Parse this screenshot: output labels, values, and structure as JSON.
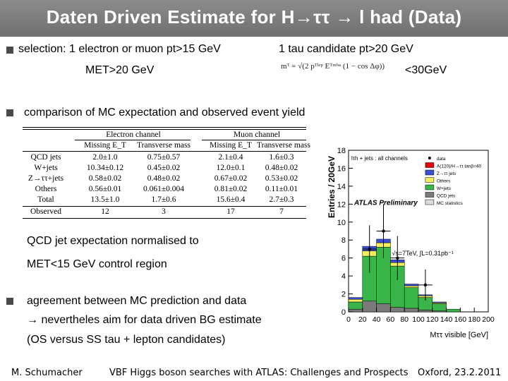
{
  "title": "Daten Driven Estimate for H→ττ → l had (Data)",
  "bullets": {
    "b1_left": "selection:   1 electron or muon pt>15 GeV",
    "b1_right": "1 tau candidate pt>20 GeV",
    "b1_met": "MET>20 GeV",
    "b1_mt_cut": "<30GeV",
    "b1_formula": "mᵀ = √(2 pᵀˡᵉᵖ Eᵀᵐⁱˢˢ (1 − cos Δφ))",
    "b2": "comparison of MC expectation and observed event yield",
    "b3_line1": "QCD jet expectation normalised  to",
    "b3_line2": "MET<15 GeV control region",
    "b4_line1": "agreement  between MC prediction and data",
    "b4_line2": "nevertheles aim for data driven BG estimate",
    "b4_line3": "(OS versus SS tau + lepton candidates)"
  },
  "table": {
    "group_headers": [
      "Electron channel",
      "Muon channel"
    ],
    "col_headers": [
      "Missing E_T",
      "Transverse mass",
      "Missing E_T",
      "Transverse mass"
    ],
    "rows": [
      {
        "label": "QCD jets",
        "values": [
          "2.0±1.0",
          "0.75±0.57",
          "2.1±0.4",
          "1.6±0.3"
        ]
      },
      {
        "label": "W+jets",
        "values": [
          "10.34±0.12",
          "0.45±0.02",
          "12.0±0.1",
          "0.48±0.02"
        ]
      },
      {
        "label": "Z→ττ+jets",
        "values": [
          "0.58±0.02",
          "0.48±0.02",
          "0.67±0.02",
          "0.53±0.02"
        ]
      },
      {
        "label": "Others",
        "values": [
          "0.56±0.01",
          "0.061±0.004",
          "0.81±0.02",
          "0.11±0.01"
        ]
      },
      {
        "label": "Total",
        "values": [
          "13.5±1.0",
          "1.7±0.6",
          "15.6±0.4",
          "2.7±0.3"
        ]
      },
      {
        "label": "Observed",
        "values": [
          "12",
          "3",
          "17",
          "7"
        ]
      }
    ]
  },
  "chart_data": {
    "type": "bar",
    "title": "lτh + jets : all channels",
    "xlabel": "Mττ visible [GeV]",
    "ylabel": "Entries / 20GeV",
    "stamp": "ATLAS Preliminary",
    "energy_label": "√s=7TeV,  ∫L=0.31pb⁻¹",
    "x_ticks": [
      "0",
      "20",
      "40",
      "60",
      "80",
      "100",
      "120",
      "140",
      "160",
      "180",
      "200"
    ],
    "y_ticks": [
      "0",
      "2",
      "4",
      "6",
      "8",
      "10",
      "12",
      "14",
      "16",
      "18"
    ],
    "xlim": [
      0,
      200
    ],
    "ylim": [
      0,
      18
    ],
    "bin_edges": [
      0,
      20,
      40,
      60,
      80,
      100,
      120,
      140,
      160,
      180,
      200
    ],
    "series": [
      {
        "name": "data",
        "color": "#000000",
        "values": [
          0,
          7.0,
          9.0,
          6.0,
          0,
          3.0,
          0,
          0,
          0,
          0
        ]
      },
      {
        "name": "A(120)/H→ττ tanβ=40",
        "color": "#e8000b",
        "values": [
          0,
          0,
          0,
          0,
          0,
          0,
          0,
          0,
          0,
          0
        ]
      },
      {
        "name": "Z→ττ jets",
        "color": "#3b4fd6",
        "values": [
          0.2,
          0.5,
          0.4,
          0.3,
          0.2,
          0.1,
          0.1,
          0,
          0,
          0
        ]
      },
      {
        "name": "Others",
        "color": "#f2ee5c",
        "values": [
          0.3,
          0.6,
          0.5,
          0.4,
          0.2,
          0.2,
          0.1,
          0,
          0,
          0
        ]
      },
      {
        "name": "W+jets",
        "color": "#39b54a",
        "values": [
          0.8,
          5.0,
          6.3,
          4.6,
          2.3,
          1.4,
          0.8,
          0.3,
          0,
          0
        ]
      },
      {
        "name": "QCD jets",
        "color": "#7a7a7a",
        "values": [
          0.3,
          1.2,
          0.9,
          0.5,
          0.4,
          0.2,
          0.1,
          0,
          0,
          0
        ]
      },
      {
        "name": "MC statistics",
        "color": "#cccccc",
        "values": []
      }
    ],
    "legend_position": "top-right"
  },
  "footer": {
    "author": "M. Schumacher",
    "talk": "VBF Higgs boson searches with ATLAS: Challenges and Prospects",
    "venue": "Oxford, 23.2.2011"
  }
}
